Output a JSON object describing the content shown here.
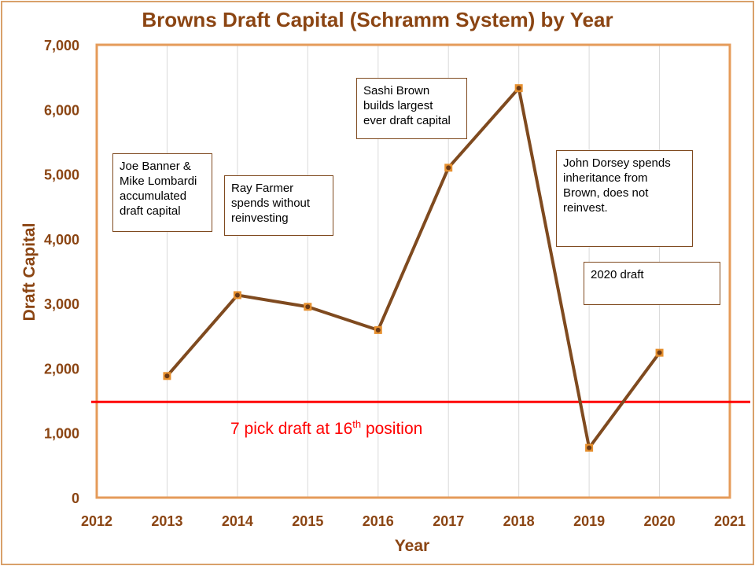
{
  "colors": {
    "title": "#8b4513",
    "axis_text": "#8b4513",
    "plot_border": "#e59b5a",
    "frame_border": "#d9a06a",
    "grid": "#d9d9d9",
    "line": "#7f4a1f",
    "marker_fill": "#e6902f",
    "marker_center": "#6b3a16",
    "reference": "#ff0000",
    "note_border": "#7f4a1f"
  },
  "chart_data": {
    "type": "line",
    "title": "Browns Draft Capital (Schramm System) by Year",
    "xlabel": "Year",
    "ylabel": "Draft Capital",
    "xlim": [
      2012,
      2021
    ],
    "ylim": [
      0,
      7000
    ],
    "xticks": [
      2012,
      2013,
      2014,
      2015,
      2016,
      2017,
      2018,
      2019,
      2020,
      2021
    ],
    "yticks": [
      0,
      1000,
      2000,
      3000,
      4000,
      5000,
      6000,
      7000
    ],
    "ytick_labels": [
      "0",
      "1,000",
      "2,000",
      "3,000",
      "4,000",
      "5,000",
      "6,000",
      "7,000"
    ],
    "grid": {
      "x": true,
      "y": false
    },
    "series": [
      {
        "name": "Draft Capital",
        "x": [
          2013,
          2014,
          2015,
          2016,
          2017,
          2018,
          2019,
          2020
        ],
        "values": [
          1880,
          3130,
          2950,
          2590,
          5100,
          6330,
          770,
          2240
        ]
      }
    ],
    "reference_line": {
      "value": 1480,
      "label_main": "7 pick draft at 16",
      "label_sup": "th",
      "label_end": " position"
    },
    "annotations": [
      {
        "lines": [
          "Joe Banner &",
          "Mike Lombardi",
          "accumulated",
          "draft capital"
        ]
      },
      {
        "lines": [
          "Ray Farmer",
          "spends without",
          "reinvesting"
        ]
      },
      {
        "lines": [
          "Sashi Brown",
          "builds largest",
          "ever draft capital"
        ]
      },
      {
        "lines": [
          "John Dorsey spends",
          "inheritance from",
          "Brown, does not",
          "reinvest."
        ]
      },
      {
        "lines": [
          "2020 draft"
        ]
      }
    ]
  }
}
